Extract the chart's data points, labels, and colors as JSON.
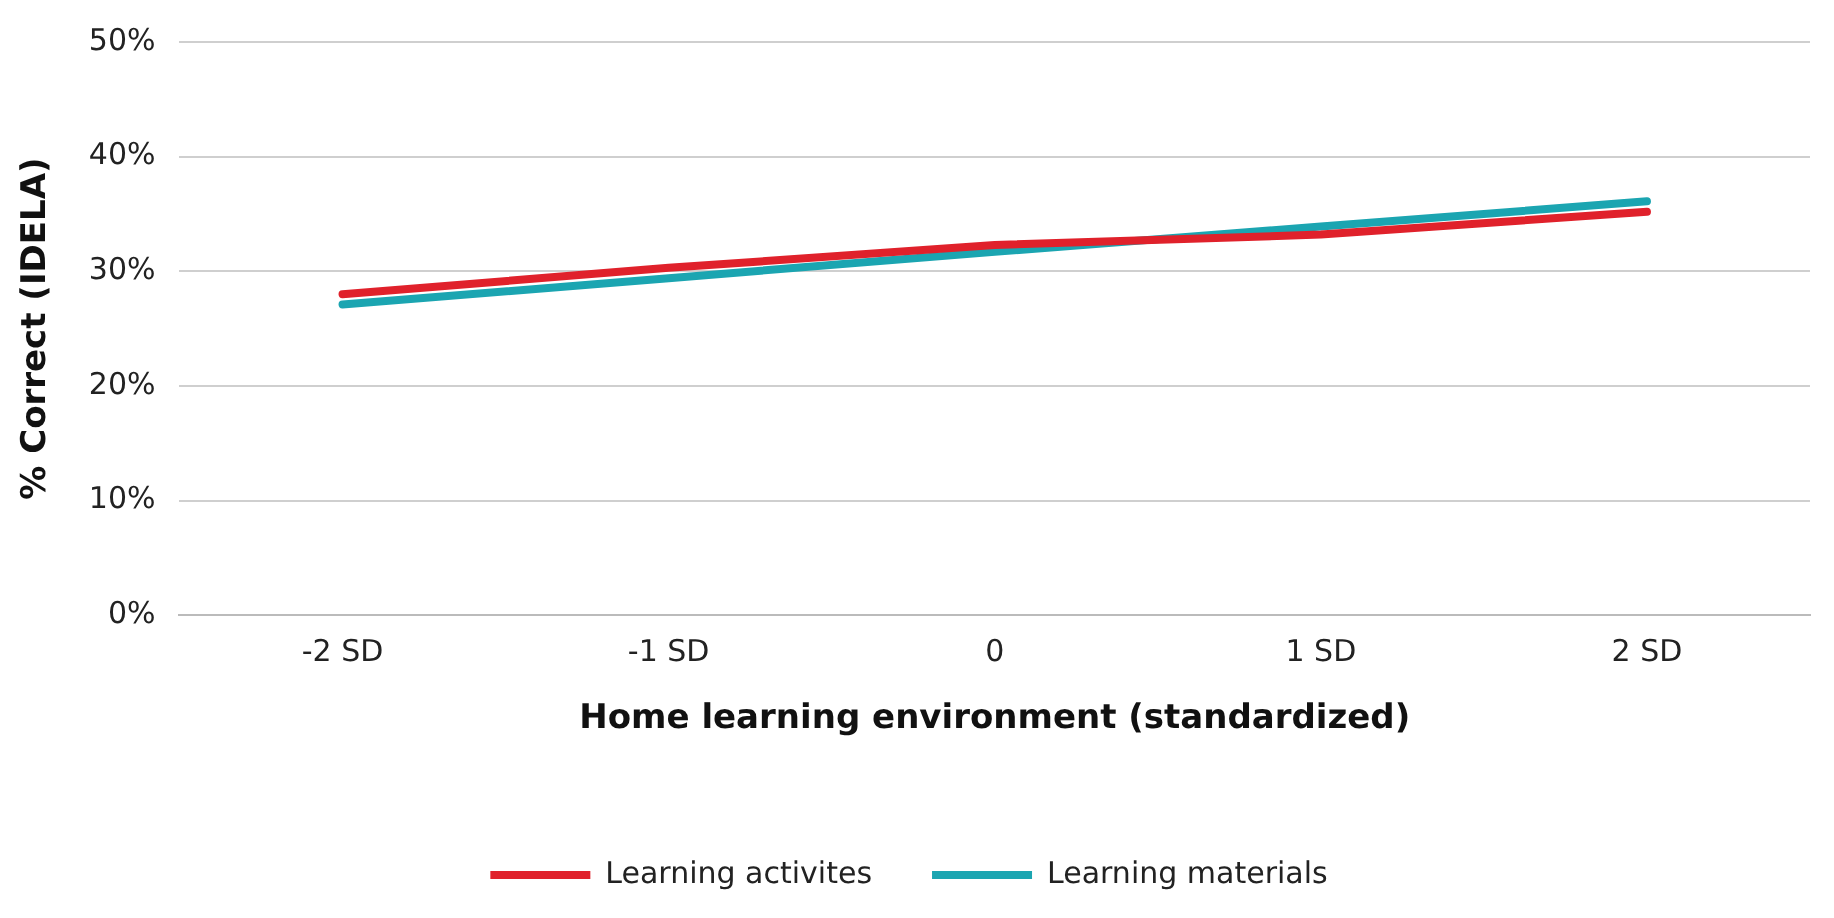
{
  "chart_data": {
    "type": "line",
    "xlabel": "Home learning environment (standardized)",
    "ylabel": "% Correct (IDELA)",
    "categories": [
      "-2 SD",
      "-1 SD",
      "0",
      "1 SD",
      "2 SD"
    ],
    "series": [
      {
        "name": "Learning activites",
        "color": "#e0212b",
        "values": [
          28.0,
          30.3,
          32.3,
          33.2,
          35.2
        ]
      },
      {
        "name": "Learning materials",
        "color": "#1ba5b1",
        "values": [
          27.1,
          29.4,
          31.7,
          33.9,
          36.1
        ]
      }
    ],
    "ylim": [
      0,
      50
    ],
    "yticks": [
      {
        "value": 0,
        "label": "0%"
      },
      {
        "value": 10,
        "label": "10%"
      },
      {
        "value": 20,
        "label": "20%"
      },
      {
        "value": 30,
        "label": "30%"
      },
      {
        "value": 40,
        "label": "40%"
      },
      {
        "value": 50,
        "label": "50%"
      }
    ],
    "grid": "y",
    "legend": "bottom",
    "marker": "none",
    "line_style": "solid"
  }
}
